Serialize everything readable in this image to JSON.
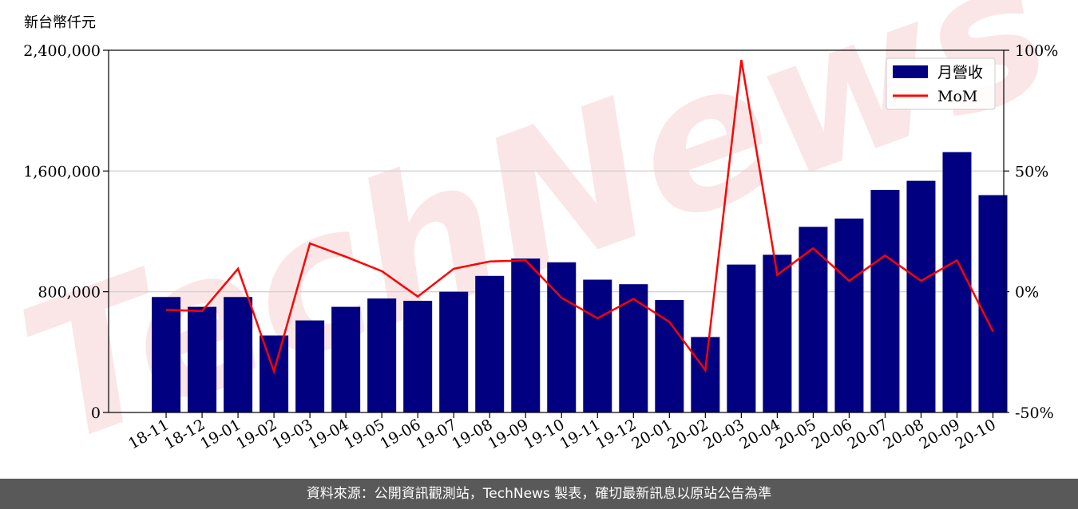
{
  "unit_label": "新台幣仟元",
  "footer": "資料來源：公開資訊觀測站，TechNews 製表，確切最新訊息以原站公告為準",
  "watermark": "TechNews",
  "colors": {
    "bar": "#000080",
    "line": "#ff0000",
    "grid": "#d3d3d3",
    "footer_bg": "#595959",
    "watermark": "#f6d5d5"
  },
  "chart_data": {
    "type": "bar",
    "categories": [
      "18-11",
      "18-12",
      "19-01",
      "19-02",
      "19-03",
      "19-04",
      "19-05",
      "19-06",
      "19-07",
      "19-08",
      "19-09",
      "19-10",
      "19-11",
      "19-12",
      "20-01",
      "20-02",
      "20-03",
      "20-04",
      "20-05",
      "20-06",
      "20-07",
      "20-08",
      "20-09",
      "20-10"
    ],
    "series": [
      {
        "name": "月營收",
        "type": "bar",
        "axis": "left",
        "values": [
          765000,
          700000,
          765000,
          510000,
          610000,
          700000,
          755000,
          740000,
          800000,
          905000,
          1020000,
          995000,
          880000,
          850000,
          745000,
          500000,
          980000,
          1045000,
          1230000,
          1285000,
          1475000,
          1535000,
          1725000,
          1440000
        ]
      },
      {
        "name": "MoM",
        "type": "line",
        "axis": "right",
        "values": [
          -7.5,
          -8,
          9.5,
          -33,
          20,
          14.5,
          8.5,
          -2,
          9.5,
          12.5,
          13,
          -2.5,
          -11,
          -3,
          -12.5,
          -32.5,
          96,
          7,
          18,
          4.5,
          15,
          4.5,
          13,
          -16.5
        ]
      }
    ],
    "yaxis_left": {
      "ylim": [
        0,
        2400000
      ],
      "ticks": [
        0,
        800000,
        1600000,
        2400000
      ],
      "tick_labels": [
        "0",
        "800,000",
        "1,600,000",
        "2,400,000"
      ]
    },
    "yaxis_right": {
      "ylim": [
        -50,
        100
      ],
      "ticks": [
        -50,
        0,
        50,
        100
      ],
      "tick_labels": [
        "-50%",
        "0%",
        "50%",
        "100%"
      ]
    },
    "grid": "horizontal",
    "legend": {
      "position": "top-right",
      "entries": [
        {
          "label": "月營收",
          "kind": "bar"
        },
        {
          "label": "MoM",
          "kind": "line"
        }
      ]
    }
  }
}
